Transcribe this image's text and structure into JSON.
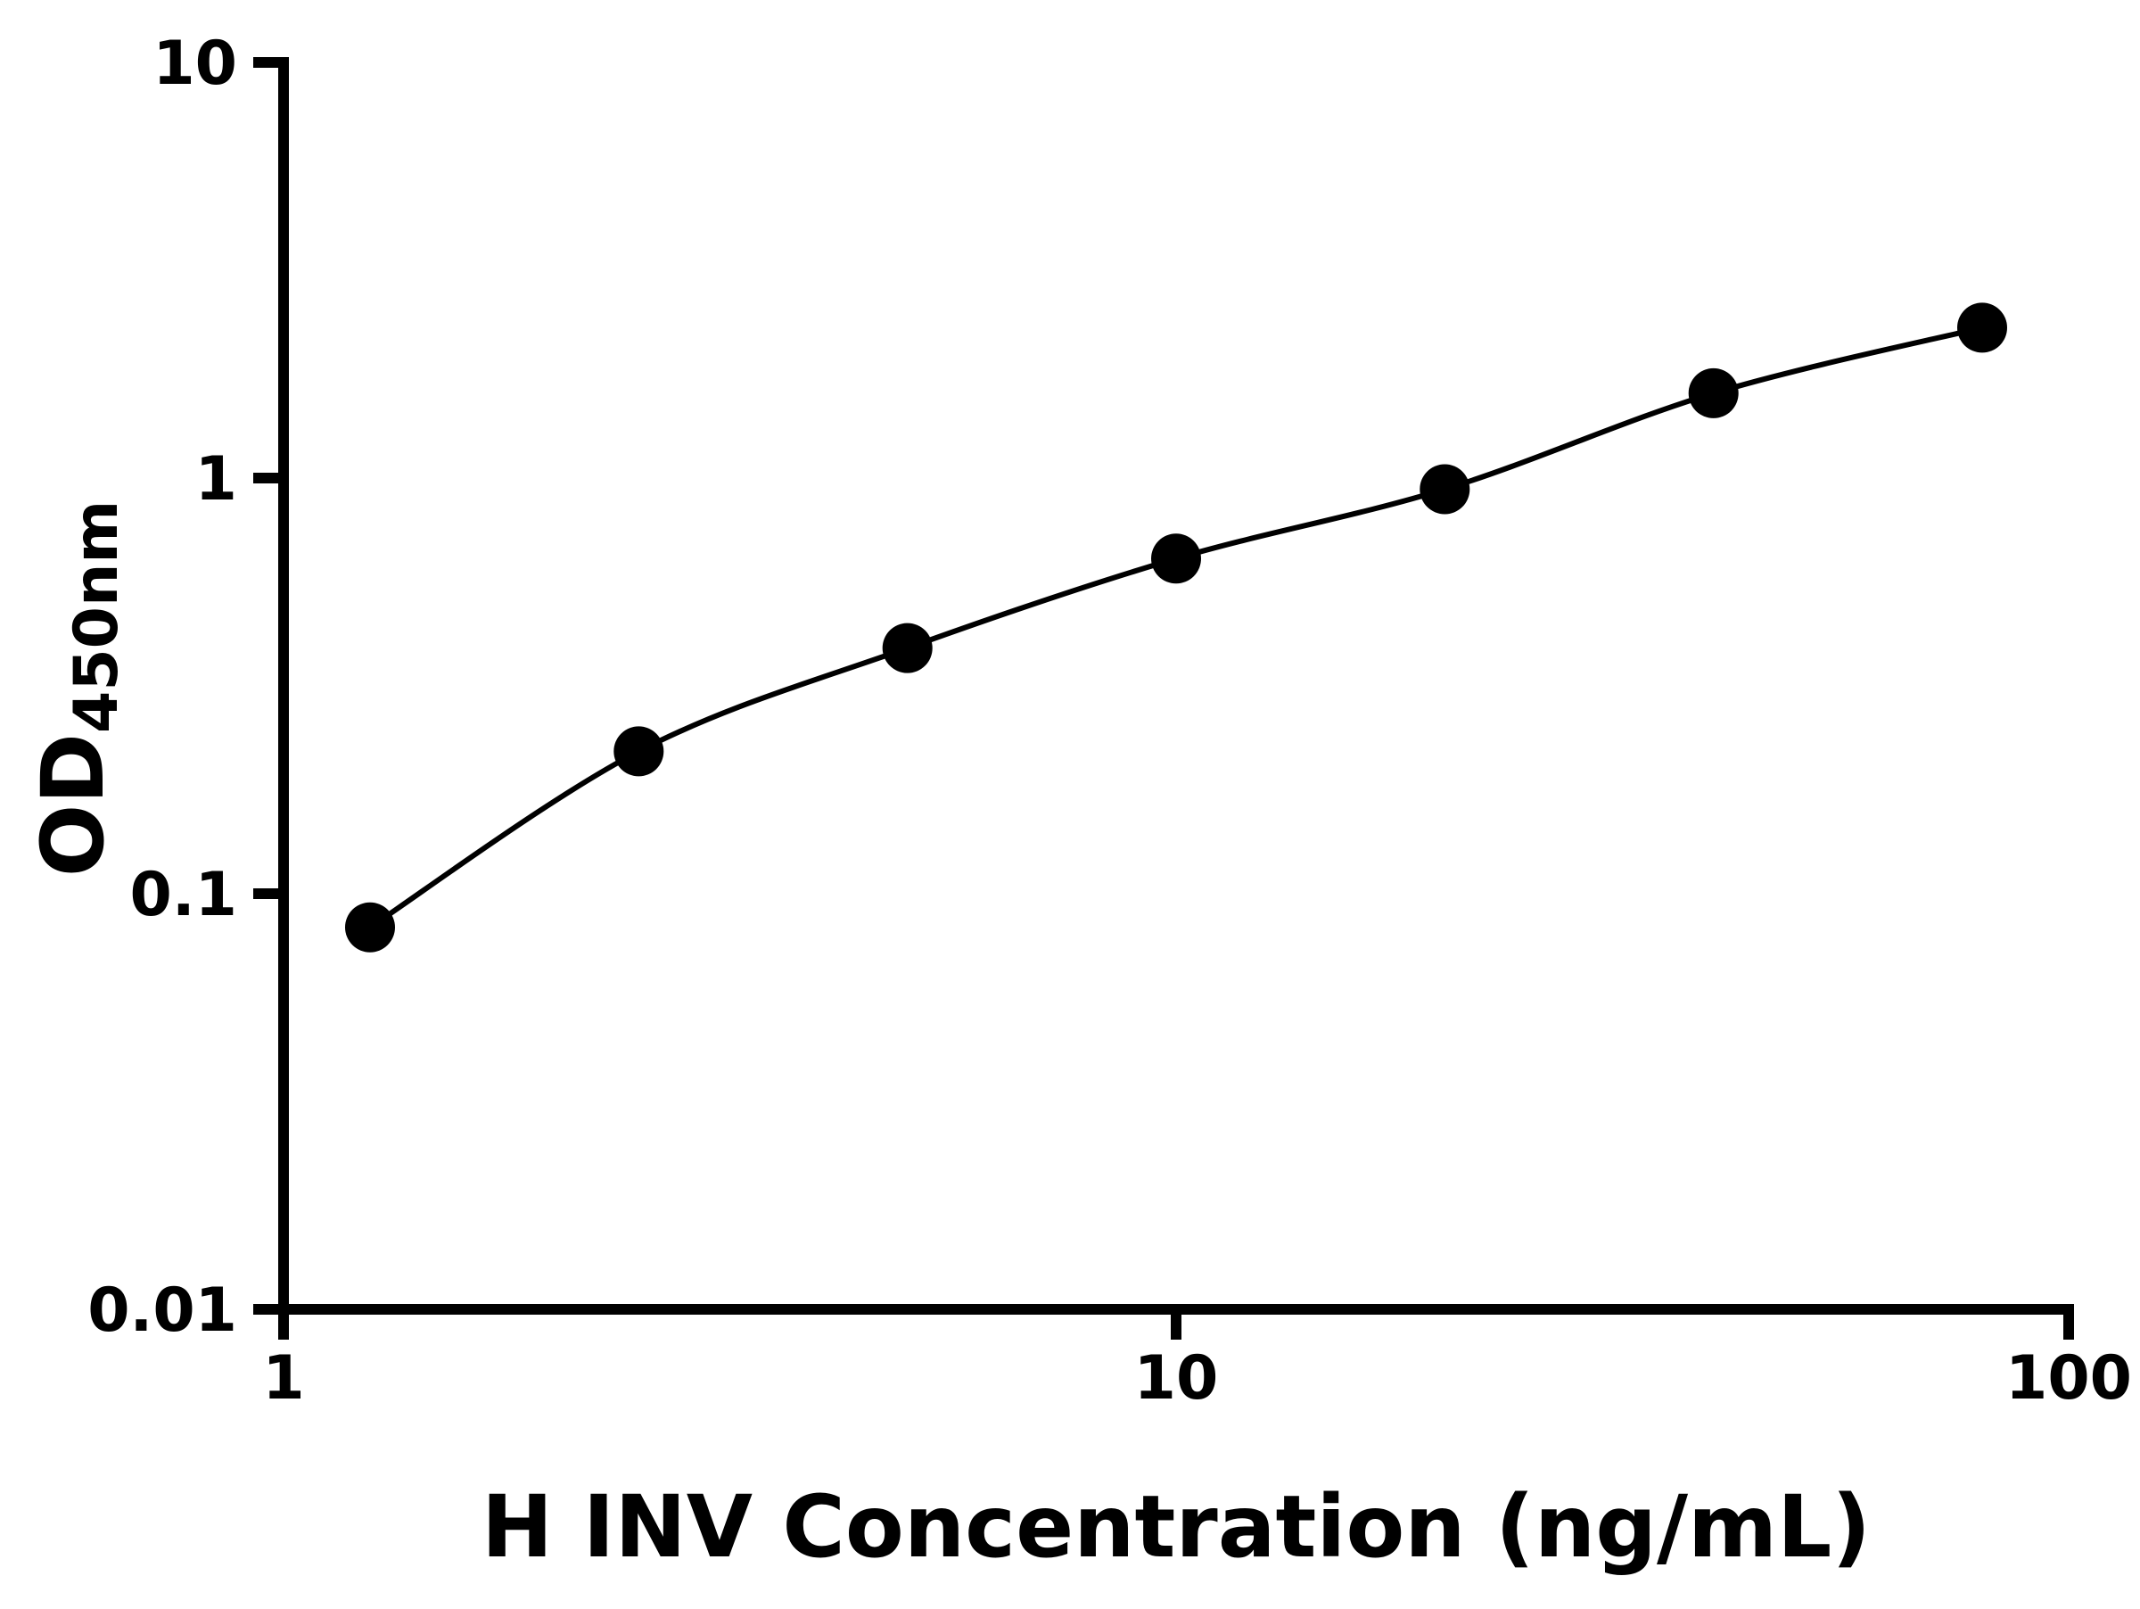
{
  "chart_data": {
    "type": "scatter",
    "title": "",
    "xlabel": "H INV Concentration (ng/mL)",
    "ylabel_main": "OD",
    "ylabel_sub": "450nm",
    "xscale": "log",
    "yscale": "log",
    "xlim": [
      1,
      100
    ],
    "ylim": [
      0.01,
      10
    ],
    "x_ticks": [
      1,
      10,
      100
    ],
    "x_tick_labels": [
      "1",
      "10",
      "100"
    ],
    "y_ticks": [
      10,
      1,
      0.1,
      0.01
    ],
    "y_tick_labels": [
      "10",
      "1",
      "0.1",
      "0.01"
    ],
    "x": [
      1.25,
      2.5,
      5,
      10,
      20,
      40,
      80
    ],
    "y": [
      0.083,
      0.22,
      0.39,
      0.64,
      0.94,
      1.6,
      2.3
    ],
    "grid": false,
    "legend_position": "none",
    "marker": "circle",
    "marker_color": "#000000",
    "line_color": "#000000",
    "axis_color": "#000000",
    "background_color": "#ffffff"
  }
}
